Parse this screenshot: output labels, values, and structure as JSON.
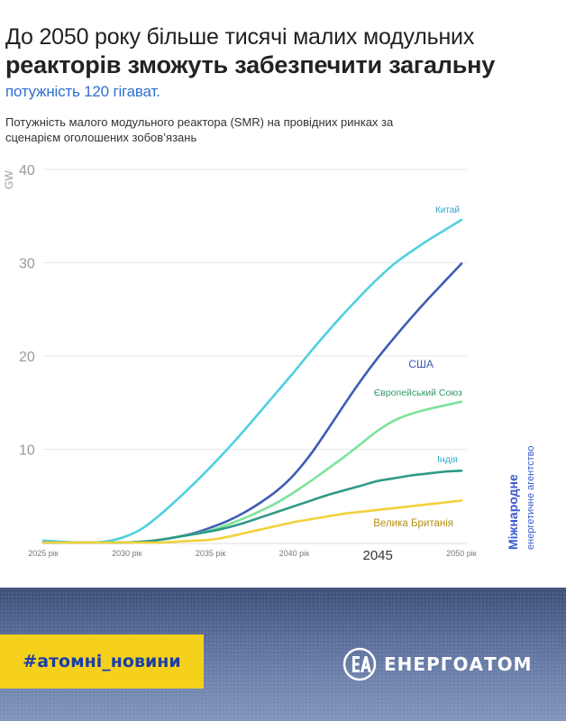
{
  "headline": {
    "line1": "До 2050 року більше тисячі малих модульних",
    "line2": "реакторів зможуть забезпечити загальну",
    "line3": "потужність 120 гігават."
  },
  "subtitle": "Потужність малого модульного реактора (SMR) на провідних ринках за сценарієм оголошених зобов’язань",
  "source": {
    "line1": "Міжнародне",
    "line2": "енергетичне агентство"
  },
  "footer": {
    "hashtag": "#атомні_новини",
    "brand": "ЕНЕРГОАТОМ"
  },
  "colors": {
    "china": "#4fd0e0",
    "usa": "#3f5cb4",
    "eu": "#7de39a",
    "india": "#2f9a87",
    "uk": "#f2d23a"
  },
  "chart_data": {
    "type": "line",
    "ylabel": "GW",
    "ylim": [
      0,
      40
    ],
    "yticks": [
      10,
      20,
      30,
      40
    ],
    "xlim": [
      2025,
      2050
    ],
    "xticks": [
      {
        "value": 2025,
        "label": "2025 рік"
      },
      {
        "value": 2030,
        "label": "2030 рік"
      },
      {
        "value": 2035,
        "label": "2035 рік"
      },
      {
        "value": 2040,
        "label": "2040 рік"
      },
      {
        "value": 2045,
        "label": "2045"
      },
      {
        "value": 2050,
        "label": "2050 рік"
      }
    ],
    "x": [
      2025,
      2026,
      2027,
      2028,
      2029,
      2030,
      2031,
      2032,
      2033,
      2034,
      2035,
      2036,
      2037,
      2038,
      2039,
      2040,
      2041,
      2042,
      2043,
      2044,
      2045,
      2046,
      2047,
      2048,
      2049,
      2050
    ],
    "series": [
      {
        "name": "Китай",
        "color_key": "china",
        "values": [
          0.2,
          0.1,
          0,
          0,
          0.2,
          0.7,
          1.6,
          3.0,
          4.6,
          6.3,
          8.1,
          10.0,
          12.0,
          14.1,
          16.2,
          18.3,
          20.5,
          22.6,
          24.6,
          26.5,
          28.3,
          29.9,
          31.2,
          32.4,
          33.5,
          34.6
        ]
      },
      {
        "name": "США",
        "color_key": "usa",
        "values": [
          0,
          0,
          0,
          0,
          0,
          0,
          0.1,
          0.3,
          0.6,
          1.0,
          1.6,
          2.3,
          3.2,
          4.3,
          5.6,
          7.3,
          9.5,
          12.1,
          14.8,
          17.4,
          19.8,
          22.0,
          24.1,
          26.1,
          28.0,
          29.9
        ]
      },
      {
        "name": "Європейський Союз",
        "color_key": "eu",
        "values": [
          0,
          0,
          0,
          0,
          0,
          0,
          0.1,
          0.3,
          0.6,
          0.9,
          1.3,
          1.9,
          2.6,
          3.4,
          4.3,
          5.4,
          6.6,
          7.9,
          9.2,
          10.6,
          12.0,
          13.1,
          13.8,
          14.3,
          14.7,
          15.1
        ]
      },
      {
        "name": "Індія",
        "color_key": "india",
        "values": [
          0,
          0,
          0,
          0,
          0,
          0,
          0.1,
          0.3,
          0.6,
          0.9,
          1.2,
          1.6,
          2.1,
          2.7,
          3.3,
          3.9,
          4.5,
          5.1,
          5.6,
          6.1,
          6.6,
          6.9,
          7.2,
          7.4,
          7.6,
          7.7
        ]
      },
      {
        "name": "Велика Британія",
        "color_key": "uk",
        "values": [
          0,
          0,
          0,
          0,
          0,
          0,
          0,
          0,
          0.1,
          0.2,
          0.3,
          0.6,
          1.0,
          1.4,
          1.8,
          2.2,
          2.5,
          2.8,
          3.1,
          3.3,
          3.5,
          3.7,
          3.9,
          4.1,
          4.3,
          4.5
        ]
      }
    ]
  }
}
